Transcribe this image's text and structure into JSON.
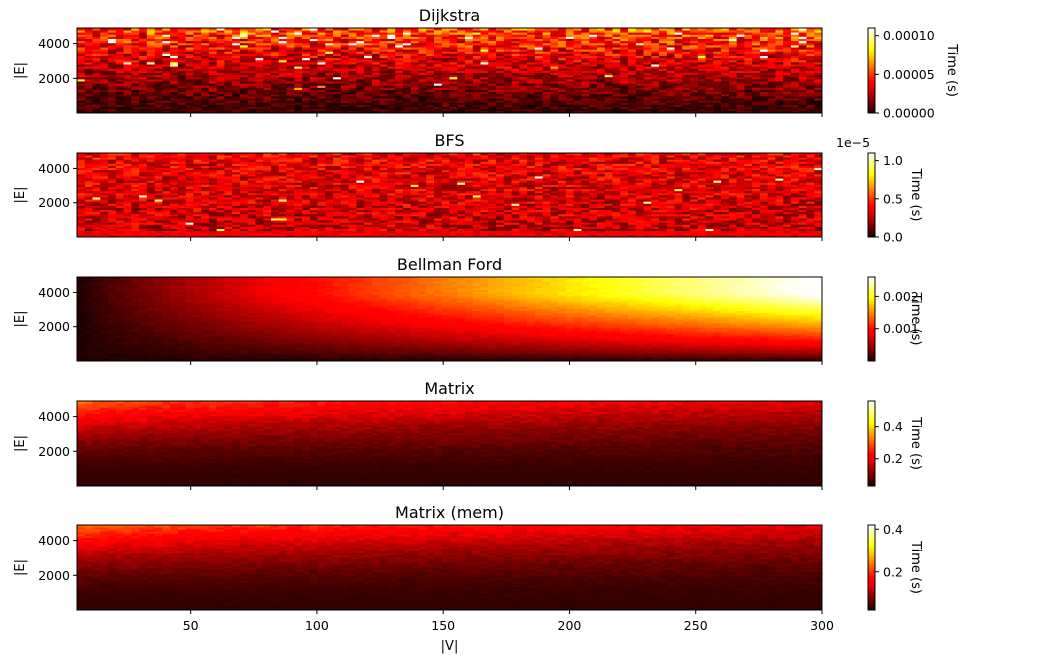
{
  "chart_data": [
    {
      "type": "heatmap",
      "title": "Dijkstra",
      "xlabel": "",
      "ylabel": "|E|",
      "xlim": [
        5,
        300
      ],
      "ylim": [
        0,
        4900
      ],
      "x_ticks": [
        "50",
        "100",
        "150",
        "200",
        "250",
        "300"
      ],
      "x_tick_values": [
        50,
        100,
        150,
        200,
        250,
        300
      ],
      "y_ticks": [
        "2000",
        "4000"
      ],
      "y_tick_values": [
        2000,
        4000
      ],
      "colormap": "hot",
      "colorbar": {
        "label": "Time (s)",
        "range": [
          0,
          0.00011
        ],
        "ticks": [
          "0.00000",
          "0.00005",
          "0.00010"
        ],
        "tick_values": [
          0,
          5e-05,
          0.0001
        ],
        "offset_text": ""
      },
      "pattern": "noisy; time increases mainly with |E|, hottest cells near top"
    },
    {
      "type": "heatmap",
      "title": "BFS",
      "xlabel": "",
      "ylabel": "|E|",
      "xlim": [
        5,
        300
      ],
      "ylim": [
        0,
        4900
      ],
      "x_ticks": [
        "50",
        "100",
        "150",
        "200",
        "250",
        "300"
      ],
      "x_tick_values": [
        50,
        100,
        150,
        200,
        250,
        300
      ],
      "y_ticks": [
        "2000",
        "4000"
      ],
      "y_tick_values": [
        2000,
        4000
      ],
      "colormap": "hot",
      "colorbar": {
        "label": "Time (s)",
        "range": [
          0,
          1.1
        ],
        "ticks": [
          "0.0",
          "0.5",
          "1.0"
        ],
        "tick_values": [
          0,
          0.5,
          1.0
        ],
        "offset_text": "1e−5"
      },
      "pattern": "uniformly noisy red across the grid with a few bright outliers"
    },
    {
      "type": "heatmap",
      "title": "Bellman Ford",
      "xlabel": "",
      "ylabel": "|E|",
      "xlim": [
        5,
        300
      ],
      "ylim": [
        0,
        4900
      ],
      "x_ticks": [
        "50",
        "100",
        "150",
        "200",
        "250",
        "300"
      ],
      "x_tick_values": [
        50,
        100,
        150,
        200,
        250,
        300
      ],
      "y_ticks": [
        "2000",
        "4000"
      ],
      "y_tick_values": [
        2000,
        4000
      ],
      "colormap": "hot",
      "colorbar": {
        "label": "Time (s)",
        "range": [
          0,
          0.0026
        ],
        "ticks": [
          "0.001",
          "0.002"
        ],
        "tick_values": [
          0.001,
          0.002
        ],
        "offset_text": ""
      },
      "pattern": "smooth gradient; time grows with both |V| and |E|, maximum at top-right"
    },
    {
      "type": "heatmap",
      "title": "Matrix",
      "xlabel": "",
      "ylabel": "|E|",
      "xlim": [
        5,
        300
      ],
      "ylim": [
        0,
        4900
      ],
      "x_ticks": [
        "50",
        "100",
        "150",
        "200",
        "250",
        "300"
      ],
      "x_tick_values": [
        50,
        100,
        150,
        200,
        250,
        300
      ],
      "y_ticks": [
        "2000",
        "4000"
      ],
      "y_tick_values": [
        2000,
        4000
      ],
      "colormap": "hot",
      "colorbar": {
        "label": "Time (s)",
        "range": [
          0.03,
          0.56
        ],
        "ticks": [
          "0.2",
          "0.4"
        ],
        "tick_values": [
          0.2,
          0.4
        ],
        "offset_text": ""
      },
      "pattern": "time grows with |E| and shrinks with |V|; hottest at top-left"
    },
    {
      "type": "heatmap",
      "title": "Matrix (mem)",
      "xlabel": "|V|",
      "ylabel": "|E|",
      "xlim": [
        5,
        300
      ],
      "ylim": [
        0,
        4900
      ],
      "x_ticks": [
        "50",
        "100",
        "150",
        "200",
        "250",
        "300"
      ],
      "x_tick_values": [
        50,
        100,
        150,
        200,
        250,
        300
      ],
      "y_ticks": [
        "2000",
        "4000"
      ],
      "y_tick_values": [
        2000,
        4000
      ],
      "colormap": "hot",
      "colorbar": {
        "label": "Time (s)",
        "range": [
          0.02,
          0.42
        ],
        "ticks": [
          "0.2",
          "0.4"
        ],
        "tick_values": [
          0.2,
          0.4
        ],
        "offset_text": ""
      },
      "pattern": "time grows with |E| and shrinks with |V|; hottest at top-left"
    }
  ]
}
